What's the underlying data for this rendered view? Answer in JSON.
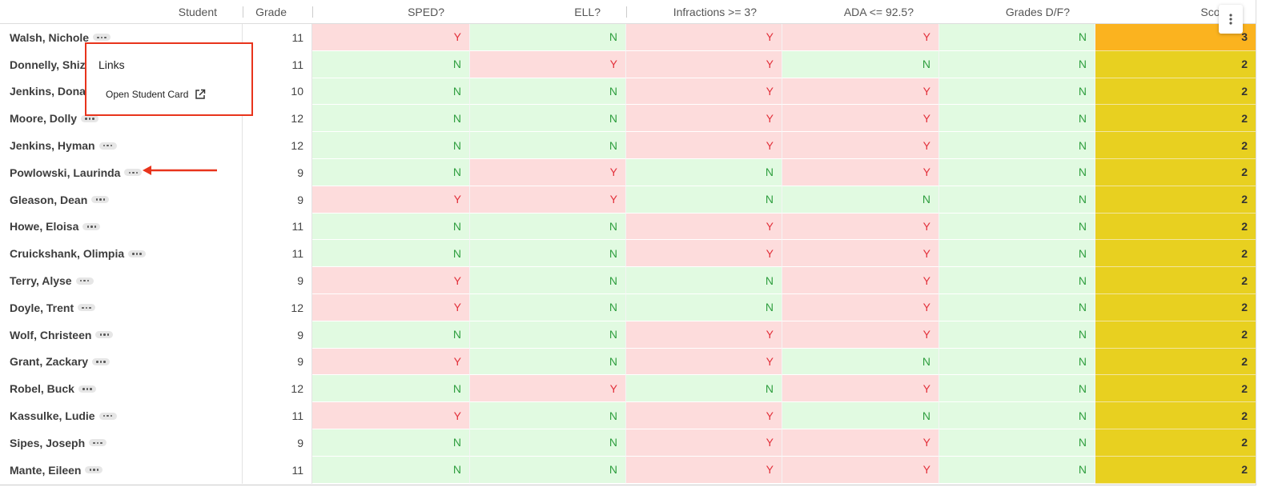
{
  "table": {
    "headers": [
      "Student",
      "Grade",
      "SPED?",
      "ELL?",
      "Infractions >= 3?",
      "ADA <= 92.5?",
      "Grades D/F?",
      "Score"
    ],
    "cell_colors": {
      "Y": {
        "bg": "#fddcdc",
        "fg": "#e2303a"
      },
      "N": {
        "bg": "#e1fae1",
        "fg": "#2f9e3f"
      }
    },
    "score_colors": {
      "3": "#fbb31f",
      "2": "#e8d020"
    },
    "rows": [
      {
        "student": "Walsh, Nichole",
        "grade": 11,
        "flags": [
          "Y",
          "N",
          "Y",
          "Y",
          "N"
        ],
        "score": 3
      },
      {
        "student": "Donnelly, Shiz",
        "grade": 11,
        "flags": [
          "N",
          "Y",
          "Y",
          "N",
          "N"
        ],
        "score": 2
      },
      {
        "student": "Jenkins, Dona",
        "grade": 10,
        "flags": [
          "N",
          "N",
          "Y",
          "Y",
          "N"
        ],
        "score": 2
      },
      {
        "student": "Moore, Dolly",
        "grade": 12,
        "flags": [
          "N",
          "N",
          "Y",
          "Y",
          "N"
        ],
        "score": 2
      },
      {
        "student": "Jenkins, Hyman",
        "grade": 12,
        "flags": [
          "N",
          "N",
          "Y",
          "Y",
          "N"
        ],
        "score": 2
      },
      {
        "student": "Powlowski, Laurinda",
        "grade": 9,
        "flags": [
          "N",
          "Y",
          "N",
          "Y",
          "N"
        ],
        "score": 2
      },
      {
        "student": "Gleason, Dean",
        "grade": 9,
        "flags": [
          "Y",
          "Y",
          "N",
          "N",
          "N"
        ],
        "score": 2
      },
      {
        "student": "Howe, Eloisa",
        "grade": 11,
        "flags": [
          "N",
          "N",
          "Y",
          "Y",
          "N"
        ],
        "score": 2
      },
      {
        "student": "Cruickshank, Olimpia",
        "grade": 11,
        "flags": [
          "N",
          "N",
          "Y",
          "Y",
          "N"
        ],
        "score": 2
      },
      {
        "student": "Terry, Alyse",
        "grade": 9,
        "flags": [
          "Y",
          "N",
          "N",
          "Y",
          "N"
        ],
        "score": 2
      },
      {
        "student": "Doyle, Trent",
        "grade": 12,
        "flags": [
          "Y",
          "N",
          "N",
          "Y",
          "N"
        ],
        "score": 2
      },
      {
        "student": "Wolf, Christeen",
        "grade": 9,
        "flags": [
          "N",
          "N",
          "Y",
          "Y",
          "N"
        ],
        "score": 2
      },
      {
        "student": "Grant, Zackary",
        "grade": 9,
        "flags": [
          "Y",
          "N",
          "Y",
          "N",
          "N"
        ],
        "score": 2
      },
      {
        "student": "Robel, Buck",
        "grade": 12,
        "flags": [
          "N",
          "Y",
          "N",
          "Y",
          "N"
        ],
        "score": 2
      },
      {
        "student": "Kassulke, Ludie",
        "grade": 11,
        "flags": [
          "Y",
          "N",
          "Y",
          "N",
          "N"
        ],
        "score": 2
      },
      {
        "student": "Sipes, Joseph",
        "grade": 9,
        "flags": [
          "N",
          "N",
          "Y",
          "Y",
          "N"
        ],
        "score": 2
      },
      {
        "student": "Mante, Eileen",
        "grade": 11,
        "flags": [
          "N",
          "N",
          "Y",
          "Y",
          "N"
        ],
        "score": 2
      }
    ]
  },
  "popup": {
    "title": "Links",
    "items": [
      "Open Student Card"
    ]
  }
}
